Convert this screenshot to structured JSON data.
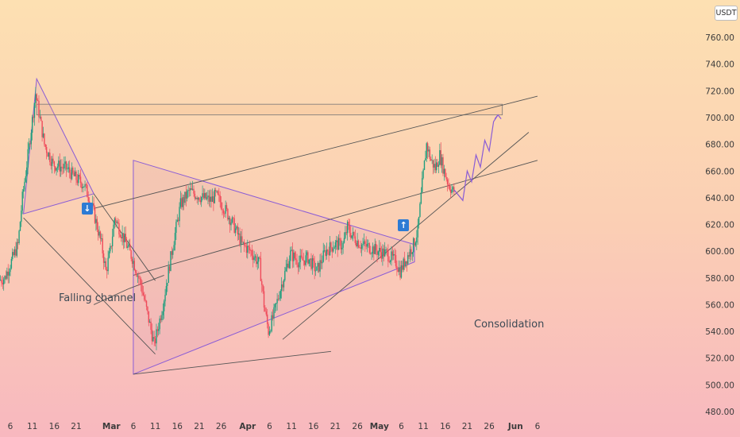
{
  "currency": "USDT",
  "colors": {
    "up": "#1f9e7e",
    "down": "#ef4a5a",
    "pattern": "#8a5cd6",
    "trend": "#555555",
    "signal": "#2d7bd4"
  },
  "annotations": {
    "falling_channel": "Falling channel",
    "consolidation": "Consolidation"
  },
  "signals": {
    "sell_icon": "arrow-down-icon",
    "buy_icon": "arrow-up-icon"
  },
  "chart_data": {
    "type": "candlestick",
    "title": "",
    "xlabel": "",
    "ylabel": "",
    "ylim": [
      470,
      785
    ],
    "y_ticks": [
      "760.00",
      "740.00",
      "720.00",
      "700.00",
      "680.00",
      "660.00",
      "640.00",
      "620.00",
      "600.00",
      "580.00",
      "560.00",
      "540.00",
      "520.00",
      "500.00",
      "480.00"
    ],
    "x_ticks": [
      {
        "label": "6",
        "day": 0
      },
      {
        "label": "11",
        "day": 5
      },
      {
        "label": "16",
        "day": 10
      },
      {
        "label": "21",
        "day": 15
      },
      {
        "label": "Mar",
        "day": 23,
        "bold": true
      },
      {
        "label": "6",
        "day": 28
      },
      {
        "label": "11",
        "day": 33
      },
      {
        "label": "16",
        "day": 38
      },
      {
        "label": "21",
        "day": 43
      },
      {
        "label": "26",
        "day": 48
      },
      {
        "label": "Apr",
        "day": 54,
        "bold": true
      },
      {
        "label": "6",
        "day": 59
      },
      {
        "label": "11",
        "day": 64
      },
      {
        "label": "16",
        "day": 69
      },
      {
        "label": "21",
        "day": 74
      },
      {
        "label": "26",
        "day": 79
      },
      {
        "label": "May",
        "day": 84,
        "bold": true
      },
      {
        "label": "6",
        "day": 89
      },
      {
        "label": "11",
        "day": 94
      },
      {
        "label": "16",
        "day": 99
      },
      {
        "label": "21",
        "day": 104
      },
      {
        "label": "26",
        "day": 109
      },
      {
        "label": "Jun",
        "day": 115,
        "bold": true
      },
      {
        "label": "6",
        "day": 120
      }
    ],
    "price_path": [
      [
        -5,
        575
      ],
      [
        -1,
        580
      ],
      [
        2,
        605
      ],
      [
        3,
        640
      ],
      [
        4,
        665
      ],
      [
        6,
        718
      ],
      [
        8,
        680
      ],
      [
        10,
        665
      ],
      [
        13,
        662
      ],
      [
        15,
        655
      ],
      [
        17,
        650
      ],
      [
        19,
        632
      ],
      [
        21,
        605
      ],
      [
        22,
        585
      ],
      [
        23,
        600
      ],
      [
        24,
        625
      ],
      [
        26,
        610
      ],
      [
        28,
        595
      ],
      [
        30,
        575
      ],
      [
        32,
        545
      ],
      [
        33,
        530
      ],
      [
        35,
        560
      ],
      [
        37,
        600
      ],
      [
        39,
        635
      ],
      [
        41,
        645
      ],
      [
        44,
        640
      ],
      [
        46,
        638
      ],
      [
        47,
        642
      ],
      [
        49,
        632
      ],
      [
        51,
        620
      ],
      [
        53,
        605
      ],
      [
        55,
        600
      ],
      [
        57,
        590
      ],
      [
        58,
        560
      ],
      [
        59,
        540
      ],
      [
        60,
        550
      ],
      [
        62,
        575
      ],
      [
        64,
        598
      ],
      [
        66,
        592
      ],
      [
        68,
        595
      ],
      [
        70,
        585
      ],
      [
        72,
        600
      ],
      [
        74,
        605
      ],
      [
        76,
        605
      ],
      [
        77,
        618
      ],
      [
        78,
        612
      ],
      [
        80,
        605
      ],
      [
        82,
        603
      ],
      [
        84,
        600
      ],
      [
        86,
        598
      ],
      [
        88,
        592
      ],
      [
        89,
        585
      ],
      [
        90,
        592
      ],
      [
        92,
        605
      ],
      [
        93,
        615
      ],
      [
        94,
        650
      ],
      [
        95,
        680
      ],
      [
        96,
        668
      ],
      [
        97,
        662
      ],
      [
        98,
        672
      ],
      [
        99,
        660
      ],
      [
        100,
        650
      ],
      [
        101,
        645
      ]
    ],
    "signals": [
      {
        "type": "sell",
        "day": 17.5,
        "price": 632
      },
      {
        "type": "buy",
        "day": 89.5,
        "price": 620
      }
    ],
    "patterns": {
      "pennant_left": [
        [
          6,
          729
        ],
        [
          3,
          628
        ],
        [
          19,
          643
        ]
      ],
      "consolidation_triangle": [
        [
          28,
          668
        ],
        [
          92,
          605
        ],
        [
          92,
          592
        ],
        [
          28,
          508
        ]
      ],
      "resistance_zone": {
        "x1": 6,
        "x2": 112,
        "y_top": 710,
        "y_bottom": 702
      },
      "projection": [
        [
          101,
          646
        ],
        [
          103,
          638
        ],
        [
          104,
          660
        ],
        [
          105,
          652
        ],
        [
          106,
          672
        ],
        [
          107,
          663
        ],
        [
          108,
          683
        ],
        [
          109,
          675
        ],
        [
          110,
          697
        ],
        [
          111,
          702
        ]
      ],
      "trendlines": [
        [
          [
            19,
            632
          ],
          [
            120,
            716
          ]
        ],
        [
          [
            28,
            582
          ],
          [
            120,
            668
          ]
        ],
        [
          [
            62,
            534
          ],
          [
            118,
            689
          ]
        ],
        [
          [
            28,
            508
          ],
          [
            73,
            525
          ]
        ],
        [
          [
            3,
            625
          ],
          [
            33,
            523
          ]
        ],
        [
          [
            19,
            643
          ],
          [
            33,
            578
          ]
        ],
        [
          [
            19,
            560
          ],
          [
            27,
            572
          ]
        ],
        [
          [
            27,
            572
          ],
          [
            35,
            582
          ]
        ]
      ]
    }
  }
}
